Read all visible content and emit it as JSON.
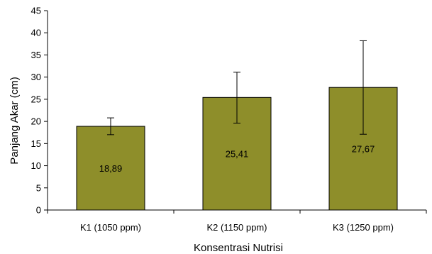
{
  "chart_data": {
    "type": "bar",
    "title": "",
    "xlabel": "Konsentrasi Nutrisi",
    "ylabel": "Panjang Akar (cm)",
    "categories": [
      "K1 (1050 ppm)",
      "K2 (1150 ppm)",
      "K3 (1250 ppm)"
    ],
    "series": [
      {
        "values": [
          18.89,
          25.41,
          27.67
        ],
        "data_labels": [
          "18,89",
          "25,41",
          "27,67"
        ],
        "error_low": [
          17.0,
          19.6,
          17.1
        ],
        "error_high": [
          20.8,
          31.1,
          38.2
        ],
        "color": "#8e8e2a"
      }
    ],
    "ylim": [
      0,
      45
    ],
    "yticks": [
      0,
      5,
      10,
      15,
      20,
      25,
      30,
      35,
      40,
      45
    ],
    "grid": false,
    "legend": "none"
  }
}
